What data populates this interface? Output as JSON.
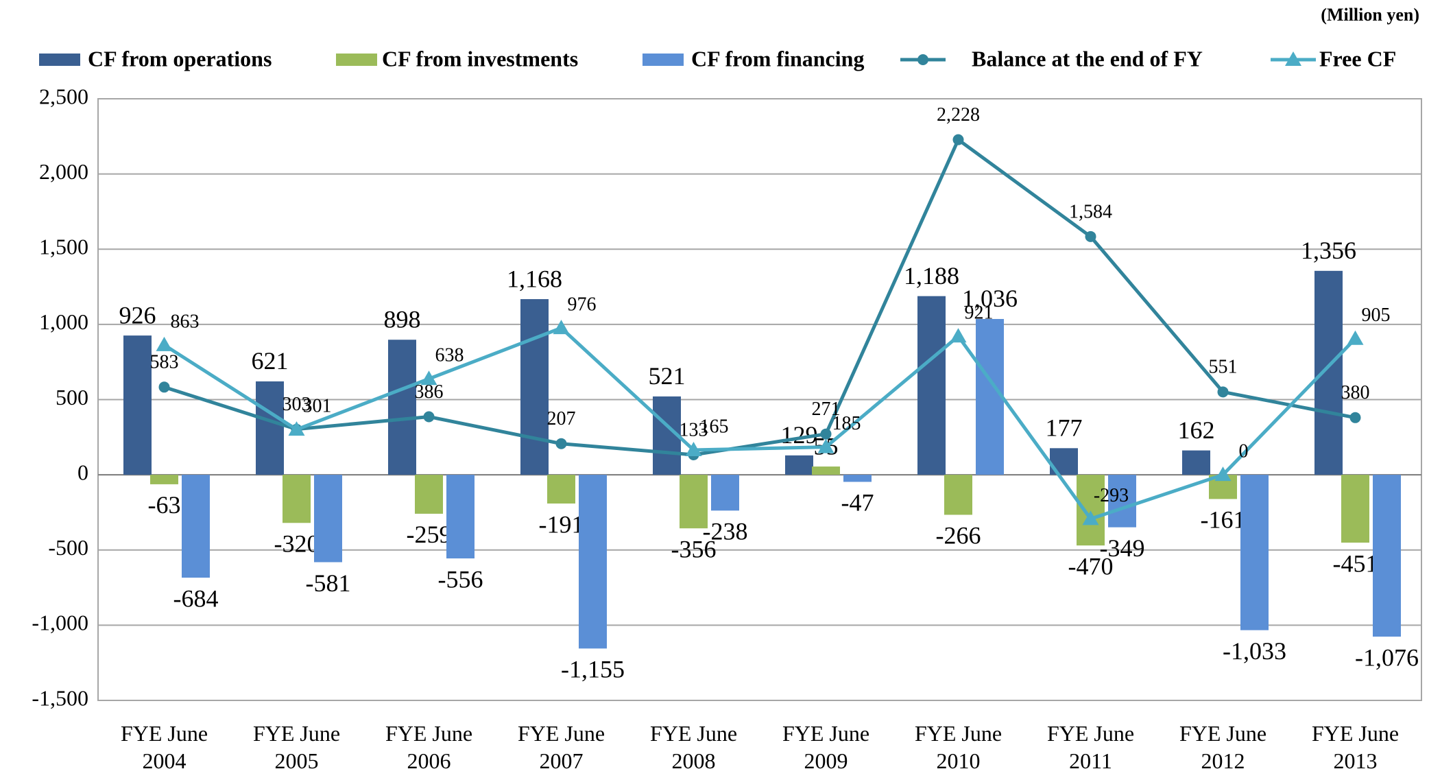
{
  "chart_data": {
    "type": "bar-line",
    "unit_label": "(Million yen)",
    "categories": [
      "FYE June 2004",
      "FYE June 2005",
      "FYE June 2006",
      "FYE June 2007",
      "FYE June 2008",
      "FYE June 2009",
      "FYE June 2010",
      "FYE June 2011",
      "FYE June 2012",
      "FYE June 2013"
    ],
    "series": [
      {
        "name": "CF from operations",
        "kind": "bar",
        "color": "#3a5f91",
        "values": [
          926,
          621,
          898,
          1168,
          521,
          129,
          1188,
          177,
          162,
          1356
        ],
        "value_labels": [
          "926",
          "621",
          "898",
          "1,168",
          "521",
          "129",
          "1,188",
          "177",
          "162",
          "1,356"
        ]
      },
      {
        "name": "CF from investments",
        "kind": "bar",
        "color": "#9bbb59",
        "values": [
          -63,
          -320,
          -259,
          -191,
          -356,
          55,
          -266,
          -470,
          -161,
          -451
        ],
        "value_labels": [
          "-63",
          "-320",
          "-259",
          "-191",
          "-356",
          "55",
          "-266",
          "-470",
          "-161",
          "-451"
        ]
      },
      {
        "name": "CF from financing",
        "kind": "bar",
        "color": "#5b8fd6",
        "values": [
          -684,
          -581,
          -556,
          -1155,
          -238,
          -47,
          1036,
          -349,
          -1033,
          -1076
        ],
        "value_labels": [
          "-684",
          "-581",
          "-556",
          "-1,155",
          "-238",
          "-47",
          "1,036",
          "-349",
          "-1,033",
          "-1,076"
        ]
      },
      {
        "name": "Balance at the end of FY",
        "kind": "line",
        "marker": "circle",
        "color": "#31849b",
        "values": [
          583,
          303,
          386,
          207,
          133,
          271,
          2228,
          1584,
          551,
          380
        ],
        "value_labels": [
          "583",
          "303",
          "386",
          "207",
          "133",
          "271",
          "2,228",
          "1,584",
          "551",
          "380"
        ]
      },
      {
        "name": "Free CF",
        "kind": "line",
        "marker": "triangle",
        "color": "#4bacc6",
        "values": [
          863,
          301,
          638,
          976,
          165,
          185,
          921,
          -293,
          0,
          905
        ],
        "value_labels": [
          "863",
          "301",
          "638",
          "976",
          "165",
          "185",
          "921",
          "-293",
          "0",
          "905"
        ]
      }
    ],
    "ylim": [
      -1500,
      2500
    ],
    "yticks": [
      {
        "value": -1500,
        "label": "-1,500"
      },
      {
        "value": -1000,
        "label": "-1,000"
      },
      -500,
      0,
      500,
      {
        "value": 1000,
        "label": "1,000"
      },
      {
        "value": 1500,
        "label": "1,500"
      },
      {
        "value": 2000,
        "label": "2,000"
      },
      {
        "value": 2500,
        "label": "2,500"
      }
    ],
    "grid": true,
    "legend": "top"
  }
}
